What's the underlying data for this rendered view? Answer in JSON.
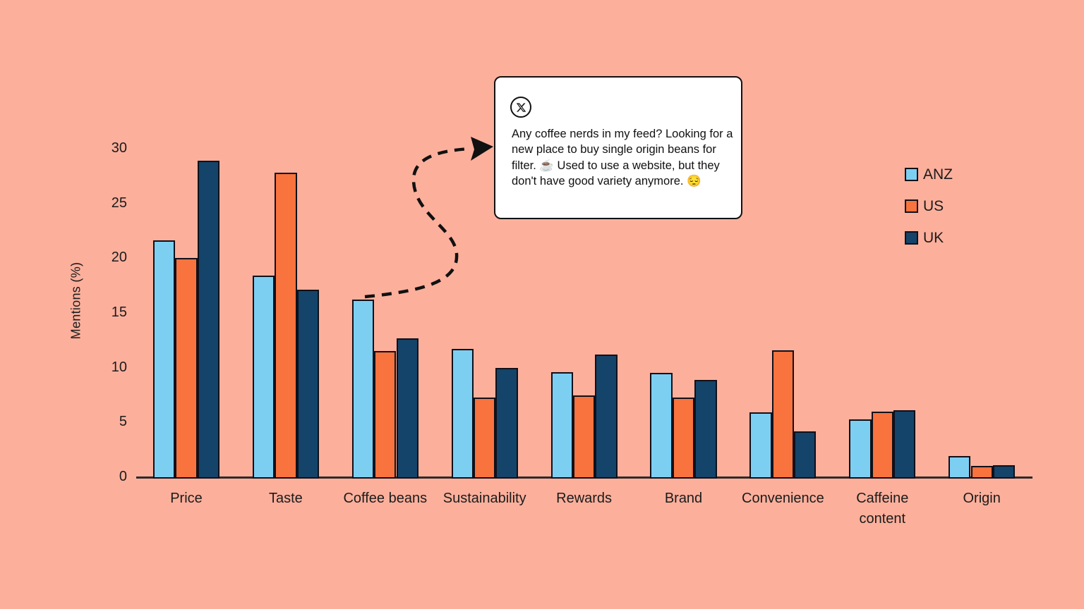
{
  "page": {
    "background_color": "#fcb09c"
  },
  "chart_data": {
    "type": "bar",
    "title": "",
    "xlabel": "",
    "ylabel": "Mentions (%)",
    "ylim": [
      0,
      30
    ],
    "yticks": [
      0,
      5,
      10,
      15,
      20,
      25,
      30
    ],
    "grid": false,
    "legend_position": "right",
    "categories": [
      "Price",
      "Taste",
      "Coffee beans",
      "Sustainability",
      "Rewards",
      "Brand",
      "Convenience",
      "Caffeine\ncontent",
      "Origin"
    ],
    "series": [
      {
        "name": "ANZ",
        "color": "#7dcff2",
        "values": [
          21.6,
          18.4,
          16.2,
          11.7,
          9.6,
          9.5,
          5.9,
          5.3,
          1.9
        ]
      },
      {
        "name": "US",
        "color": "#f8733e",
        "values": [
          20.0,
          27.8,
          11.5,
          7.3,
          7.5,
          7.3,
          11.6,
          6.0,
          1.0
        ]
      },
      {
        "name": "UK",
        "color": "#144469",
        "values": [
          28.9,
          17.1,
          12.7,
          10.0,
          11.2,
          8.9,
          4.2,
          6.1,
          1.1
        ]
      }
    ],
    "annotation": {
      "source_icon": "x-logo-icon",
      "text": "Any coffee nerds in my feed? Looking for a new place to buy single origin beans for filter. ☕ Used to use a website, but they don't have good variety anymore. 😔",
      "points_to_category": "Coffee beans"
    }
  }
}
